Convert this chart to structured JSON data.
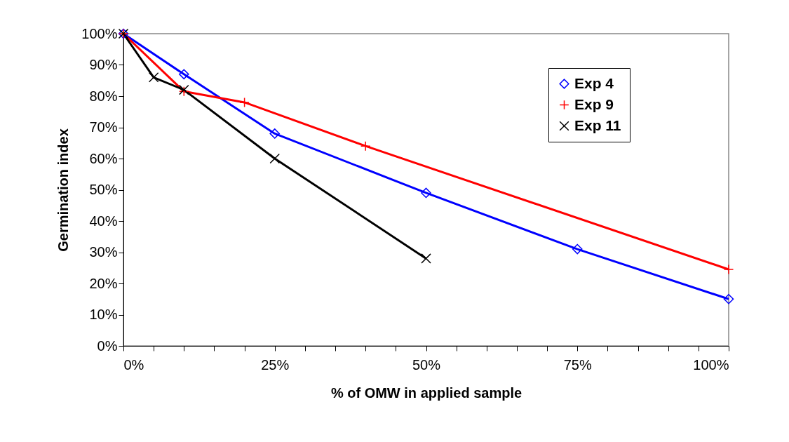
{
  "chart_data": {
    "type": "line",
    "xlabel": "% of OMW in applied sample",
    "ylabel": "Germination index",
    "xlim": [
      0,
      100
    ],
    "ylim": [
      0,
      100
    ],
    "xticks": [
      {
        "value": 0,
        "label": "0%"
      },
      {
        "value": 5,
        "label": null
      },
      {
        "value": 10,
        "label": null
      },
      {
        "value": 15,
        "label": null
      },
      {
        "value": 20,
        "label": null
      },
      {
        "value": 25,
        "label": "25%"
      },
      {
        "value": 30,
        "label": null
      },
      {
        "value": 35,
        "label": null
      },
      {
        "value": 40,
        "label": null
      },
      {
        "value": 45,
        "label": null
      },
      {
        "value": 50,
        "label": "50%"
      },
      {
        "value": 55,
        "label": null
      },
      {
        "value": 60,
        "label": null
      },
      {
        "value": 65,
        "label": null
      },
      {
        "value": 70,
        "label": null
      },
      {
        "value": 75,
        "label": "75%"
      },
      {
        "value": 80,
        "label": null
      },
      {
        "value": 85,
        "label": null
      },
      {
        "value": 90,
        "label": null
      },
      {
        "value": 95,
        "label": null
      },
      {
        "value": 100,
        "label": "100%"
      }
    ],
    "yticks": [
      {
        "value": 0,
        "label": "0%"
      },
      {
        "value": 10,
        "label": "10%"
      },
      {
        "value": 20,
        "label": "20%"
      },
      {
        "value": 30,
        "label": "30%"
      },
      {
        "value": 40,
        "label": "40%"
      },
      {
        "value": 50,
        "label": "50%"
      },
      {
        "value": 60,
        "label": "60%"
      },
      {
        "value": 70,
        "label": "70%"
      },
      {
        "value": 80,
        "label": "80%"
      },
      {
        "value": 90,
        "label": "90%"
      },
      {
        "value": 100,
        "label": "100%"
      }
    ],
    "grid": false,
    "legend": "top right",
    "line_style": "solid",
    "series": [
      {
        "name": "Exp 4",
        "color": "#0000ff",
        "marker": "diamond",
        "x": [
          0,
          10,
          25,
          50,
          75,
          100
        ],
        "values": [
          100,
          87,
          68,
          49,
          31,
          15
        ]
      },
      {
        "name": "Exp 9",
        "color": "#ff0000",
        "marker": "cross",
        "x": [
          0,
          10,
          20,
          40,
          100
        ],
        "values": [
          100,
          81.5,
          78,
          64,
          24.5
        ]
      },
      {
        "name": "Exp 11",
        "color": "#000000",
        "marker": "x",
        "x": [
          0,
          5,
          10,
          25,
          50
        ],
        "values": [
          100,
          86,
          82,
          60,
          28
        ]
      }
    ]
  }
}
